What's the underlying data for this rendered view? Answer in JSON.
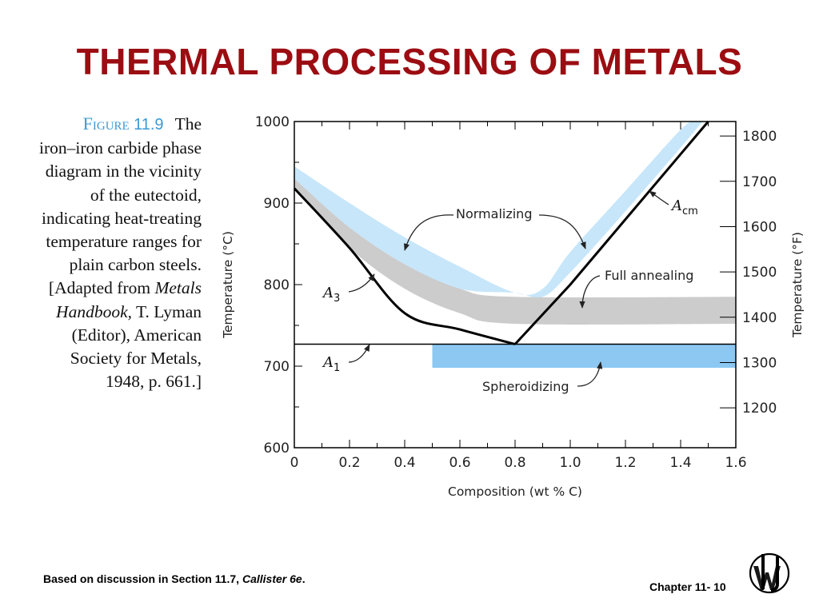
{
  "slide": {
    "title": "THERMAL PROCESSING OF METALS",
    "footer_left_main": "Based on discussion in Section 11.7, ",
    "footer_left_italic": "Callister 6e",
    "footer_left_end": ".",
    "footer_right": "Chapter 11- 10"
  },
  "caption": {
    "figure_label": "Figure",
    "figure_number": "11.9",
    "line1": "The",
    "line2": "iron–iron carbide phase",
    "line3": "diagram in the vicinity",
    "line4": "of the eutectoid,",
    "line5": "indicating heat-treating",
    "line6": "temperature ranges for",
    "line7": "plain carbon steels.",
    "line8_pre": "[Adapted from ",
    "line8_italic": "Metals",
    "line9_italic": "Handbook,",
    "line9_post": " T. Lyman",
    "line10": "(Editor), American",
    "line11": "Society for Metals,",
    "line12": "1948, p. 661.]"
  },
  "chart_data": {
    "type": "phase-diagram",
    "xlabel": "Composition (wt % C)",
    "ylabel_left": "Temperature (°C)",
    "ylabel_right": "Temperature (°F)",
    "xlim": [
      0,
      1.6
    ],
    "ylim": [
      600,
      1000
    ],
    "x_ticks": [
      "0",
      "0.2",
      "0.4",
      "0.6",
      "0.8",
      "1.0",
      "1.2",
      "1.4",
      "1.6"
    ],
    "y_ticks_left": [
      "600",
      "700",
      "800",
      "900",
      "1000"
    ],
    "y_ticks_right": [
      "1200",
      "1300",
      "1400",
      "1500",
      "1600",
      "1700",
      "1800"
    ],
    "lines": {
      "A3": [
        [
          0,
          918
        ],
        [
          0.2,
          845
        ],
        [
          0.4,
          765
        ],
        [
          0.6,
          745
        ],
        [
          0.8,
          727
        ]
      ],
      "Acm": [
        [
          0.8,
          727
        ],
        [
          1.0,
          800
        ],
        [
          1.2,
          880
        ],
        [
          1.4,
          960
        ],
        [
          1.5,
          1000
        ]
      ],
      "A1": [
        [
          0,
          727
        ],
        [
          1.6,
          727
        ]
      ]
    },
    "regions": {
      "Normalizing": {
        "upper": [
          [
            0,
            945
          ],
          [
            0.2,
            900
          ],
          [
            0.4,
            858
          ],
          [
            0.6,
            822
          ],
          [
            0.8,
            790
          ],
          [
            0.9,
            795
          ],
          [
            1.0,
            840
          ],
          [
            1.2,
            915
          ],
          [
            1.4,
            990
          ],
          [
            1.45,
            1000
          ]
        ],
        "lower": [
          [
            0,
            930
          ],
          [
            0.2,
            870
          ],
          [
            0.4,
            825
          ],
          [
            0.6,
            795
          ],
          [
            0.8,
            790
          ],
          [
            0.9,
            785
          ],
          [
            1.0,
            815
          ],
          [
            1.2,
            890
          ],
          [
            1.4,
            968
          ],
          [
            1.48,
            1000
          ]
        ]
      },
      "Full annealing": {
        "upper": [
          [
            0,
            930
          ],
          [
            0.2,
            870
          ],
          [
            0.4,
            825
          ],
          [
            0.6,
            795
          ],
          [
            0.8,
            785
          ],
          [
            1.6,
            785
          ]
        ],
        "lower": [
          [
            0,
            918
          ],
          [
            0.2,
            845
          ],
          [
            0.4,
            795
          ],
          [
            0.6,
            765
          ],
          [
            0.8,
            752
          ],
          [
            1.6,
            752
          ]
        ]
      },
      "Spheroidizing": {
        "x": [
          0.5,
          1.6
        ],
        "y": [
          698,
          727
        ]
      }
    },
    "labels": {
      "normalizing": "Normalizing",
      "full_annealing": "Full annealing",
      "spheroidizing": "Spheroidizing",
      "a3_main": "A",
      "a3_sub": "3",
      "a1_main": "A",
      "a1_sub": "1",
      "acm_main": "A",
      "acm_sub": "cm"
    },
    "colors": {
      "normalizing": "#c7e6fa",
      "full_annealing": "#cccccc",
      "spheroidizing": "#8cc8f2",
      "curve": "#000000"
    }
  }
}
